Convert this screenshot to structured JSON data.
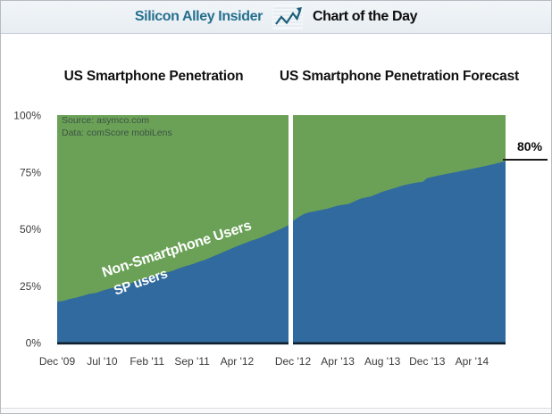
{
  "header": {
    "brand": "Silicon Alley Insider",
    "chart_of_day": "Chart of the Day"
  },
  "colors": {
    "smartphone_blue": "#316A9E",
    "non_smartphone_green": "#6AA156",
    "axis_line": "#10202D",
    "brand_teal": "#26708F",
    "tick_text": "#3b3b3b",
    "icon_stroke": "#1d5f7a"
  },
  "source": {
    "line1": "Source: asymco.com",
    "line2": "Data: comScore mobiLens"
  },
  "area_labels": {
    "non_smartphone": "Non-Smartphone Users",
    "smartphone": "SP users"
  },
  "callout": {
    "label": "80%"
  },
  "y_axis": {
    "unit": "%",
    "ticks": [
      {
        "value": 100,
        "label": "100%"
      },
      {
        "value": 75,
        "label": "75%"
      },
      {
        "value": 50,
        "label": "50%"
      },
      {
        "value": 25,
        "label": "25%"
      },
      {
        "value": 0,
        "label": "0%"
      }
    ]
  },
  "chart_data": [
    {
      "type": "area",
      "title": "US Smartphone Penetration",
      "stacking": "percent",
      "ylim": [
        0,
        100
      ],
      "x_range_months": [
        0,
        36
      ],
      "x_ticks": [
        {
          "label": "Dec '09",
          "month": 0
        },
        {
          "label": "Jul '10",
          "month": 7
        },
        {
          "label": "Feb '11",
          "month": 14
        },
        {
          "label": "Sep '11",
          "month": 21
        },
        {
          "label": "Apr '12",
          "month": 28
        }
      ],
      "series": [
        {
          "name": "SP users",
          "color_key": "smartphone_blue",
          "points": [
            [
              0,
              18
            ],
            [
              1,
              18.4
            ],
            [
              2,
              19.2
            ],
            [
              3,
              19.8
            ],
            [
              4,
              20.6
            ],
            [
              5,
              21.4
            ],
            [
              6,
              21.8
            ],
            [
              7,
              22.8
            ],
            [
              8,
              23.6
            ],
            [
              9,
              24.3
            ],
            [
              10,
              25.2
            ],
            [
              11,
              25.8
            ],
            [
              12,
              26.6
            ],
            [
              13,
              27.6
            ],
            [
              14,
              28.6
            ],
            [
              15,
              29.2
            ],
            [
              16,
              30.1
            ],
            [
              17,
              30.8
            ],
            [
              18,
              31.6
            ],
            [
              19,
              32.7
            ],
            [
              20,
              33.6
            ],
            [
              21,
              34.4
            ],
            [
              22,
              35.5
            ],
            [
              23,
              36.4
            ],
            [
              24,
              37.6
            ],
            [
              25,
              38.8
            ],
            [
              26,
              40.0
            ],
            [
              27,
              41.2
            ],
            [
              28,
              42.4
            ],
            [
              29,
              43.4
            ],
            [
              30,
              44.6
            ],
            [
              31,
              45.5
            ],
            [
              32,
              46.6
            ],
            [
              33,
              47.8
            ],
            [
              34,
              49.0
            ],
            [
              35,
              50.2
            ],
            [
              36,
              51.6
            ]
          ]
        },
        {
          "name": "Non-Smartphone Users",
          "color_key": "non_smartphone_green",
          "derived": "100 minus SP users"
        }
      ]
    },
    {
      "type": "area",
      "title": "US Smartphone Penetration Forecast",
      "stacking": "percent",
      "ylim": [
        0,
        100
      ],
      "x_range_months": [
        0,
        19
      ],
      "end_annotation": "80%",
      "x_ticks": [
        {
          "label": "Dec '12",
          "month": 0
        },
        {
          "label": "Apr '13",
          "month": 4
        },
        {
          "label": "Aug '13",
          "month": 8
        },
        {
          "label": "Dec '13",
          "month": 12
        },
        {
          "label": "Apr '14",
          "month": 16
        }
      ],
      "series": [
        {
          "name": "SP users",
          "color_key": "smartphone_blue",
          "points": [
            [
              0,
              53.5
            ],
            [
              0.5,
              55.2
            ],
            [
              1,
              56.6
            ],
            [
              1.5,
              57.3
            ],
            [
              2,
              57.8
            ],
            [
              3,
              58.8
            ],
            [
              4,
              60.2
            ],
            [
              5,
              61.0
            ],
            [
              6,
              63.2
            ],
            [
              7,
              64.3
            ],
            [
              8,
              66.3
            ],
            [
              9,
              67.8
            ],
            [
              10,
              69.3
            ],
            [
              11,
              70.3
            ],
            [
              11.6,
              70.7
            ],
            [
              12,
              72.3
            ],
            [
              13,
              73.4
            ],
            [
              14,
              74.4
            ],
            [
              15,
              75.4
            ],
            [
              16,
              76.4
            ],
            [
              17,
              77.4
            ],
            [
              18,
              78.5
            ],
            [
              19,
              79.8
            ]
          ]
        },
        {
          "name": "Non-Smartphone Users",
          "color_key": "non_smartphone_green",
          "derived": "100 minus SP users"
        }
      ]
    }
  ]
}
